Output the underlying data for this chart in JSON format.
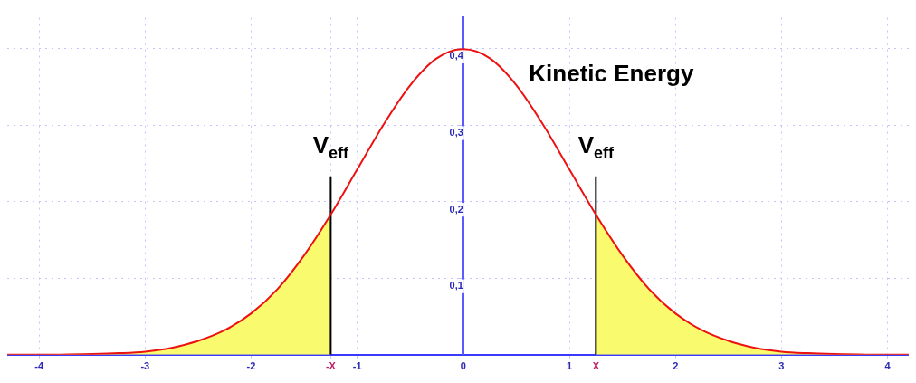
{
  "chart_data": {
    "type": "line",
    "xlim": [
      -4.3,
      4.2
    ],
    "ylim": [
      0,
      0.44
    ],
    "xticks": [
      -4,
      -3,
      -2,
      {
        "value": -1.25,
        "label": "-X"
      },
      -1,
      0,
      1,
      {
        "value": 1.25,
        "label": "X"
      },
      2,
      3,
      4
    ],
    "yticks": [
      {
        "value": 0.1,
        "label": "0,1"
      },
      {
        "value": 0.2,
        "label": "0,2"
      },
      {
        "value": 0.3,
        "label": "0,3"
      },
      {
        "value": 0.4,
        "label": "0,4"
      }
    ],
    "grid": true,
    "legend": false,
    "series": [
      {
        "type": "line",
        "color": "#ee1111",
        "x": [
          -4.3,
          -4,
          -3.5,
          -3.25,
          -3,
          -2.75,
          -2.5,
          -2.25,
          -2,
          -1.75,
          -1.5,
          -1.25,
          -1,
          -0.75,
          -0.5,
          -0.25,
          0,
          0.25,
          0.5,
          0.75,
          1,
          1.25,
          1.5,
          1.75,
          2,
          2.25,
          2.5,
          2.75,
          3,
          3.25,
          3.5,
          4,
          4.2
        ],
        "values": [
          0.0,
          0.0,
          0.001,
          0.002,
          0.004,
          0.009,
          0.018,
          0.032,
          0.054,
          0.086,
          0.13,
          0.183,
          0.242,
          0.301,
          0.352,
          0.387,
          0.399,
          0.387,
          0.352,
          0.301,
          0.242,
          0.183,
          0.13,
          0.086,
          0.054,
          0.032,
          0.018,
          0.009,
          0.004,
          0.002,
          0.001,
          0.0,
          0.0
        ]
      },
      {
        "type": "area",
        "color": "#fafa6e",
        "x": [
          -4.3,
          -4,
          -3.5,
          -3.25,
          -3,
          -2.75,
          -2.5,
          -2.25,
          -2,
          -1.75,
          -1.5,
          -1.25
        ],
        "values": [
          0.0,
          0.0,
          0.001,
          0.002,
          0.004,
          0.009,
          0.018,
          0.032,
          0.054,
          0.086,
          0.13,
          0.183
        ]
      },
      {
        "type": "area",
        "color": "#fafa6e",
        "x": [
          1.25,
          1.5,
          1.75,
          2,
          2.25,
          2.5,
          2.75,
          3,
          3.25,
          3.5,
          4,
          4.2
        ],
        "values": [
          0.183,
          0.13,
          0.086,
          0.054,
          0.032,
          0.018,
          0.009,
          0.004,
          0.002,
          0.001,
          0.0,
          0.0
        ]
      },
      {
        "type": "line",
        "color": "#000000",
        "x": [
          -1.25,
          -1.25
        ],
        "values": [
          0,
          0.233
        ]
      },
      {
        "type": "line",
        "color": "#000000",
        "x": [
          1.25,
          1.25
        ],
        "values": [
          0,
          0.233
        ]
      }
    ],
    "annotations": [
      {
        "text": "V$_{eff}$",
        "x": -1.25,
        "y": 0.233
      },
      {
        "text": "V$_{eff}$",
        "x": 1.25,
        "y": 0.233
      },
      "Kinetic Energy"
    ]
  }
}
